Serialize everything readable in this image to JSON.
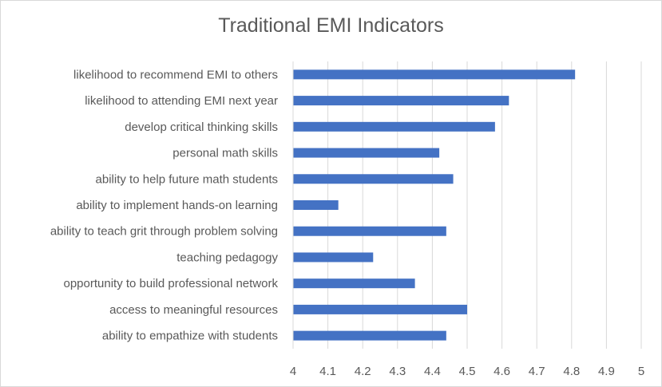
{
  "chart_data": {
    "type": "bar",
    "orientation": "horizontal",
    "title": "Traditional EMI Indicators",
    "xlabel": "",
    "ylabel": "",
    "categories": [
      "likelihood to recommend EMI to others",
      "likelihood to attending EMI next year",
      "develop critical thinking skills",
      "personal math skills",
      "ability to help future math students",
      "ability to implement hands-on learning",
      "ability to teach grit through problem solving",
      "teaching pedagogy",
      "opportunity to build professional network",
      "access to meaningful resources",
      "ability to empathize with students"
    ],
    "series": [
      {
        "values": [
          4.81,
          4.62,
          4.58,
          4.42,
          4.46,
          4.13,
          4.44,
          4.23,
          4.35,
          4.5,
          4.44
        ],
        "color": "#4472c4"
      }
    ],
    "xlim": [
      4,
      5
    ],
    "xticks": [
      "4",
      "4.1",
      "4.2",
      "4.3",
      "4.4",
      "4.5",
      "4.6",
      "4.7",
      "4.8",
      "4.9",
      "5"
    ],
    "grid": "vertical",
    "gridColor": "#d9d9d9",
    "legend": "none"
  }
}
